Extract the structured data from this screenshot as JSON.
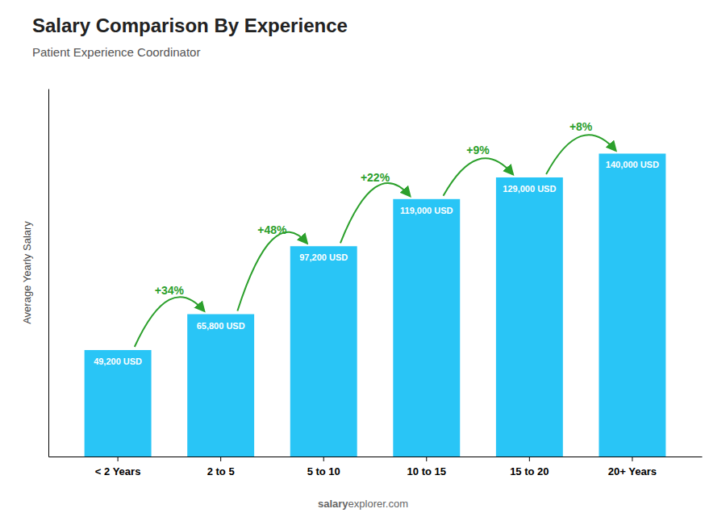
{
  "chart_data": {
    "type": "bar",
    "title": "Salary Comparison By Experience",
    "subtitle": "Patient Experience Coordinator",
    "ylabel": "Average Yearly Salary",
    "categories": [
      "< 2 Years",
      "2 to 5",
      "5 to 10",
      "10 to 15",
      "15 to 20",
      "20+ Years"
    ],
    "values": [
      49200,
      65800,
      97200,
      119000,
      129000,
      140000
    ],
    "value_labels": [
      "49,200 USD",
      "65,800 USD",
      "97,200 USD",
      "119,000 USD",
      "129,000 USD",
      "140,000 USD"
    ],
    "data_labels": true,
    "color": "#29c5f6",
    "ylim": [
      0,
      170000
    ],
    "tick_labels": "x",
    "grid": false,
    "annotations": [
      "+34%",
      "+48%",
      "+22%",
      "+9%",
      "+8%"
    ],
    "watermark": [
      "salary",
      "explorer.com"
    ]
  }
}
